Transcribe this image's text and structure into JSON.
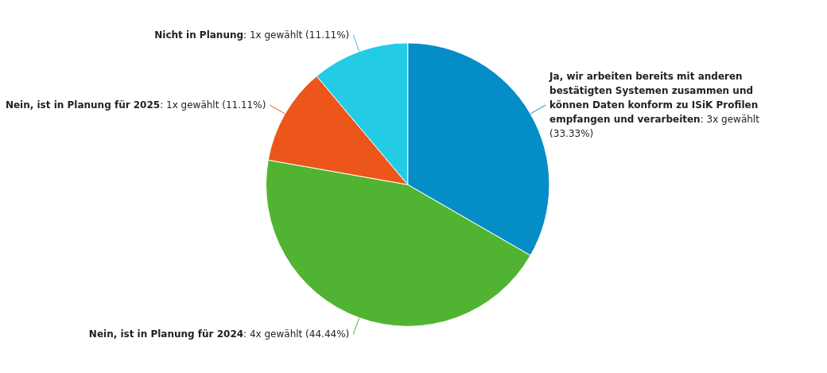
{
  "chart_data": {
    "type": "pie",
    "categories": [
      "Ja, wir arbeiten bereits mit anderen bestätigten Systemen zusammen und können Daten konform zu ISiK Profilen empfangen und verarbeiten",
      "Nein, ist in Planung für 2024",
      "Nein, ist in Planung für 2025",
      "Nicht in Planung"
    ],
    "values": [
      3,
      4,
      1,
      1
    ],
    "value_labels": [
      ": 3x gewählt (33.33%)",
      ": 4x gewählt (44.44%)",
      ": 1x gewählt (11.11%)",
      ": 1x gewählt (11.11%)"
    ],
    "colors": [
      "#058dc7",
      "#50b432",
      "#ed561b",
      "#24cbe5"
    ]
  }
}
